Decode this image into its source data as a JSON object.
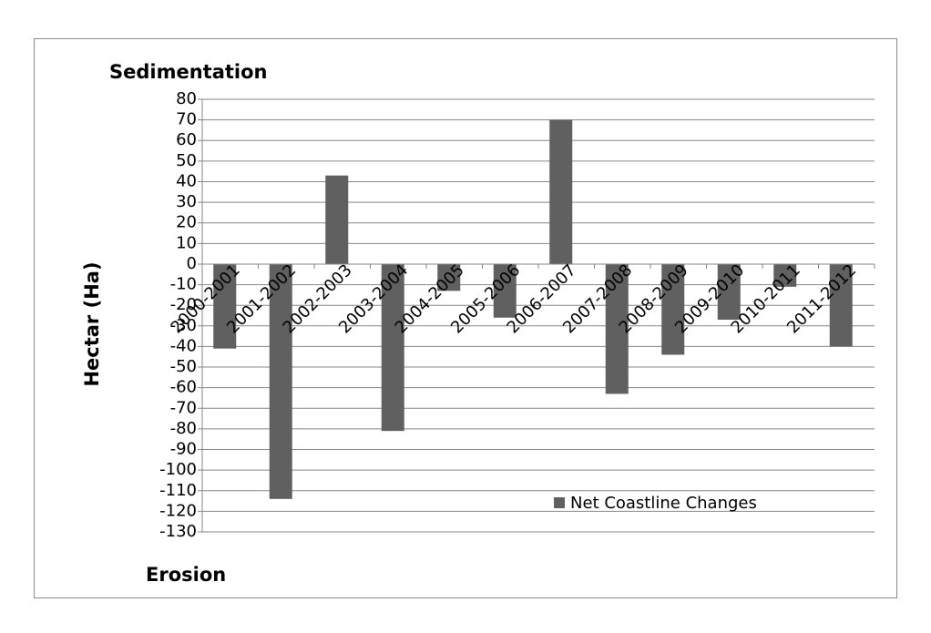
{
  "chart_data": {
    "type": "bar",
    "annotations": [
      "Sedimentation",
      "Erosion"
    ],
    "y_label": "Hectar (Ha)",
    "categories": [
      "2000-2001",
      "2001-2002",
      "2002-2003",
      "2003-2004",
      "2004-2005",
      "2005-2006",
      "2006-2007",
      "2007-2008",
      "2008-2009",
      "2009-2010",
      "2010-2011",
      "2011-2012"
    ],
    "series": [
      {
        "name": "Net Coastline Changes",
        "color": "#606060",
        "values": [
          -41,
          -114,
          43,
          -81,
          -13,
          -26,
          70,
          -63,
          -44,
          -27,
          -11,
          -40
        ]
      }
    ],
    "ylim": [
      -130,
      80
    ],
    "yticks": [
      80,
      70,
      60,
      50,
      40,
      30,
      20,
      10,
      0,
      -10,
      -20,
      -30,
      -40,
      -50,
      -60,
      -70,
      -80,
      -90,
      -100,
      -110,
      -120,
      -130
    ],
    "grid": true,
    "legend": "lower right"
  }
}
